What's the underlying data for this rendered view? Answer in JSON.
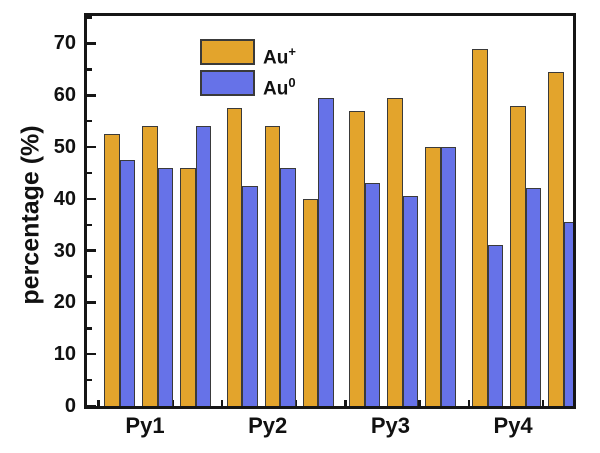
{
  "chart_data": {
    "type": "bar",
    "title": "",
    "ylabel": "percentage (%)",
    "xlabel": "",
    "ylim": [
      0,
      75.6
    ],
    "yticks": [
      0,
      10,
      20,
      30,
      40,
      50,
      60,
      70
    ],
    "yticks_minor": [
      5,
      15,
      25,
      35,
      45,
      55,
      65,
      75
    ],
    "categories": [
      "Py1",
      "Py2",
      "Py3",
      "Py4"
    ],
    "bars_per_category": 3,
    "series": [
      {
        "name": "Au+",
        "label": {
          "base": "Au",
          "sup": "+"
        },
        "color": "#e3a42c",
        "values": [
          [
            52.5,
            54,
            46
          ],
          [
            57.5,
            54,
            40
          ],
          [
            57,
            59.5,
            50
          ],
          [
            69,
            58,
            64.5
          ]
        ]
      },
      {
        "name": "Au0",
        "label": {
          "base": "Au",
          "sup": "0"
        },
        "color": "#6672e8",
        "values": [
          [
            47.5,
            46,
            54
          ],
          [
            42.5,
            46,
            59.5
          ],
          [
            43,
            40.5,
            50
          ],
          [
            31,
            42,
            35.5
          ]
        ]
      }
    ],
    "legend_position": "top-left",
    "grid": false
  },
  "colors": {
    "gold": "#e3a42c",
    "blue": "#6672e8",
    "bar_outline": "#3a3a3a",
    "axis": "#161616",
    "text": "#111111",
    "background": "#ffffff"
  }
}
